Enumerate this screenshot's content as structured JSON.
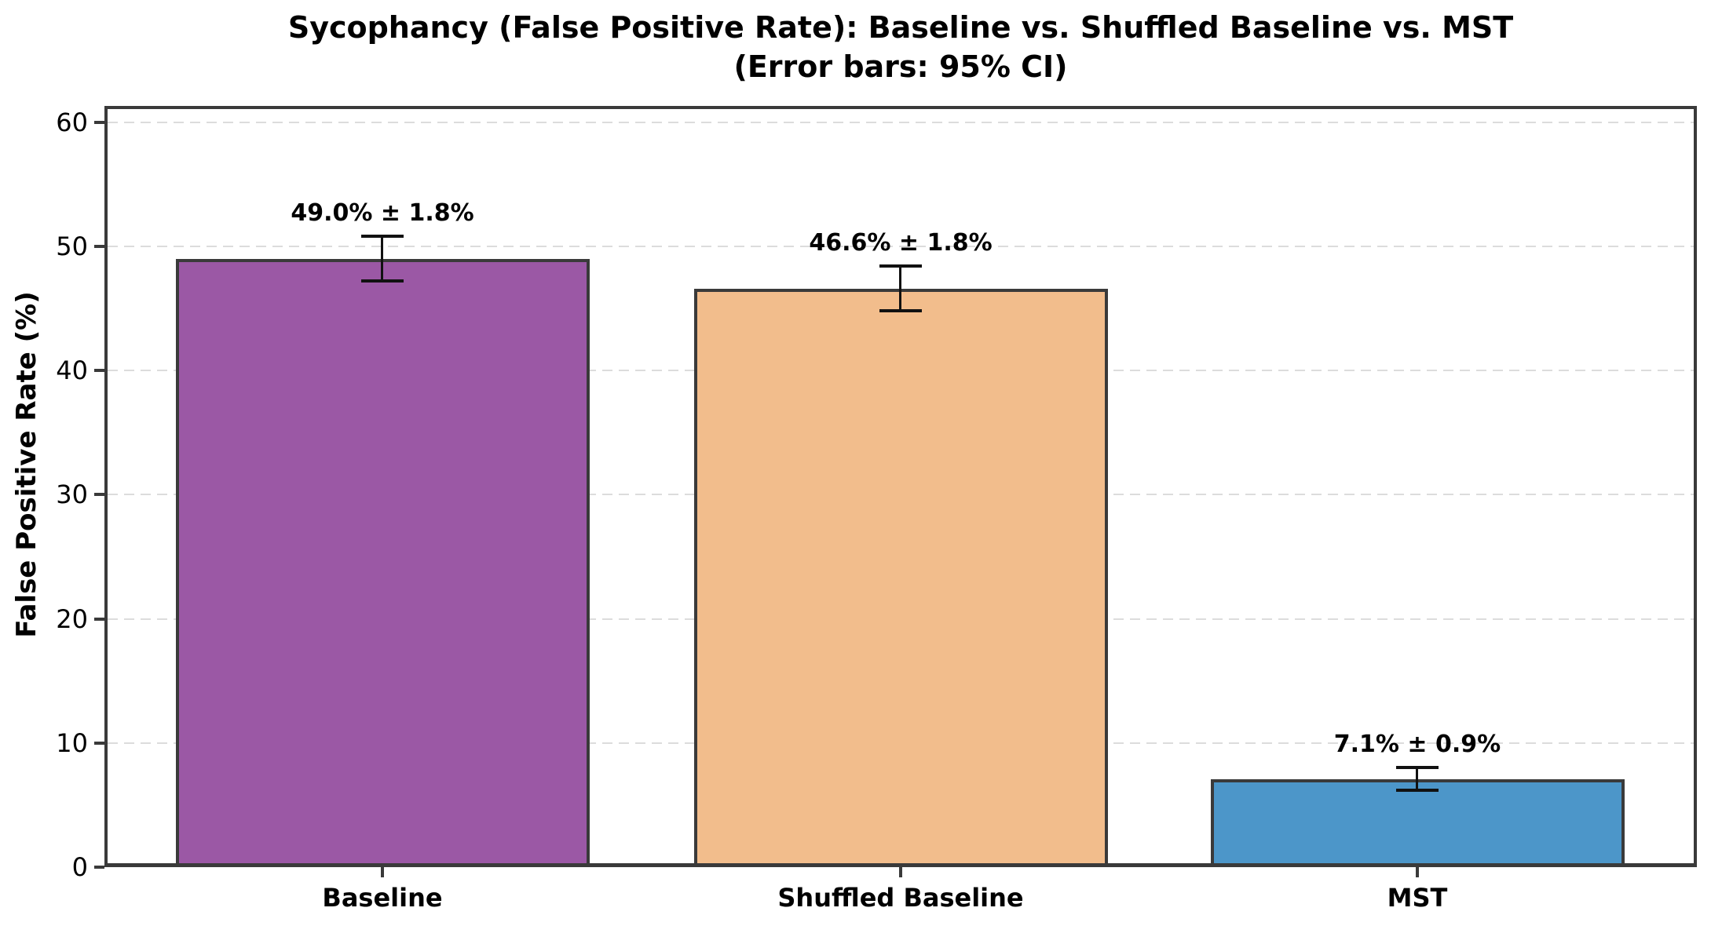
{
  "title": {
    "line1": "Sycophancy (False Positive Rate): Baseline vs. Shuffled Baseline vs. MST",
    "line2": "(Error bars: 95% CI)"
  },
  "chart_data": {
    "type": "bar",
    "title": "Sycophancy (False Positive Rate): Baseline vs. Shuffled Baseline vs. MST (Error bars: 95% CI)",
    "xlabel": "",
    "ylabel": "False Positive Rate (%)",
    "categories": [
      "Baseline",
      "Shuffled Baseline",
      "MST"
    ],
    "values": [
      49.0,
      46.6,
      7.1
    ],
    "errors_95ci": [
      1.8,
      1.8,
      0.9
    ],
    "bar_labels": [
      "49.0% ± 1.8%",
      "46.6% ± 1.8%",
      "7.1% ± 0.9%"
    ],
    "bar_colors": [
      "#9B58A5",
      "#F2BD8C",
      "#4C96C9"
    ],
    "yticks": [
      0,
      10,
      20,
      30,
      40,
      50,
      60
    ],
    "ylim": [
      0,
      61.3
    ],
    "grid": "horizontal-dashed",
    "legend": "none"
  },
  "colors": {
    "spine": "#3A3A3A",
    "bar_edge": "#3A3A3A",
    "grid": "#DCDCDC",
    "error_bar": "#111111",
    "text": "#000000"
  }
}
